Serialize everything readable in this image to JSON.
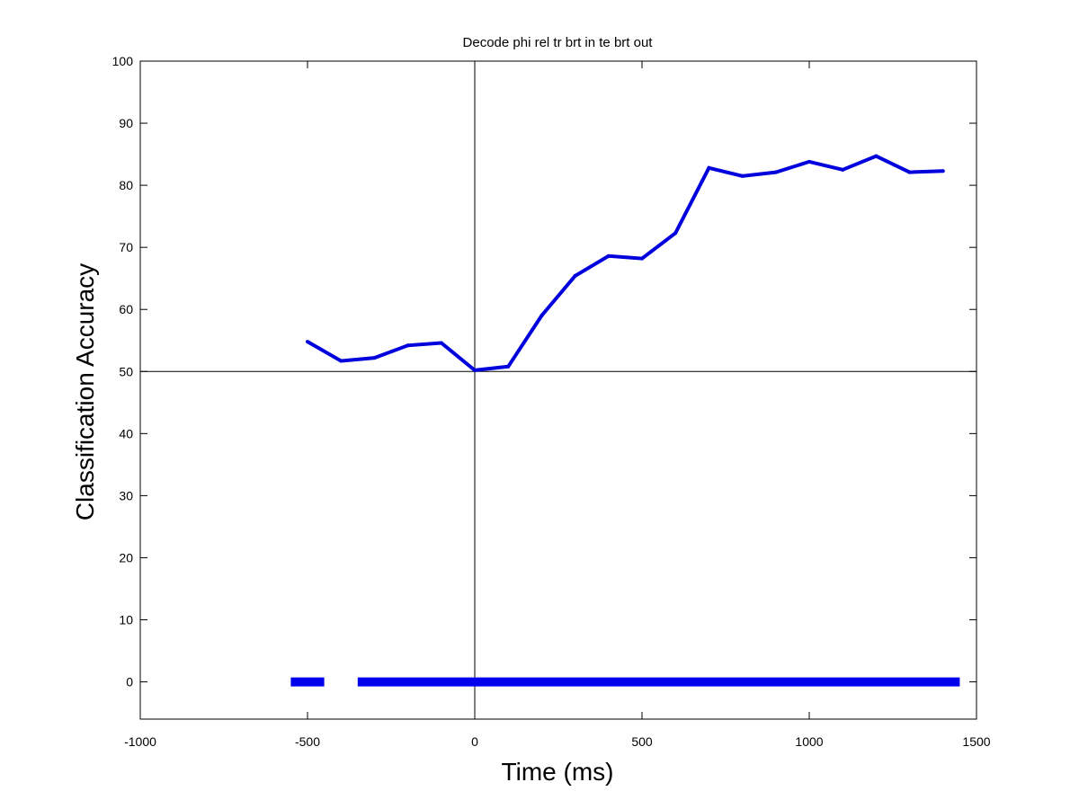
{
  "chart_data": {
    "type": "line",
    "title": "Decode phi rel tr brt in te brt out",
    "xlabel": "Time (ms)",
    "ylabel": "Classification Accuracy",
    "xlim": [
      -1000,
      1500
    ],
    "ylim": [
      -6,
      100
    ],
    "xticks": [
      -1000,
      -500,
      0,
      500,
      1000,
      1500
    ],
    "yticks": [
      0,
      10,
      20,
      30,
      40,
      50,
      60,
      70,
      80,
      90,
      100
    ],
    "grid": false,
    "reference_lines": {
      "x": 0,
      "y": 50
    },
    "series": [
      {
        "color": "#0000dd",
        "x": [
          -500,
          -400,
          -300,
          -200,
          -100,
          0,
          100,
          200,
          300,
          400,
          500,
          600,
          700,
          800,
          900,
          1000,
          1100,
          1200,
          1300,
          1400
        ],
        "values": [
          54.8,
          51.7,
          52.2,
          54.2,
          54.6,
          50.2,
          50.8,
          59.0,
          65.4,
          68.6,
          68.2,
          72.3,
          82.8,
          81.5,
          82.1,
          83.8,
          82.5,
          84.7,
          82.1,
          82.3
        ]
      }
    ],
    "significance_bars": {
      "color": "#0000ee",
      "y": 0,
      "segments": [
        [
          -550,
          -450
        ],
        [
          -350,
          1450
        ]
      ]
    }
  }
}
